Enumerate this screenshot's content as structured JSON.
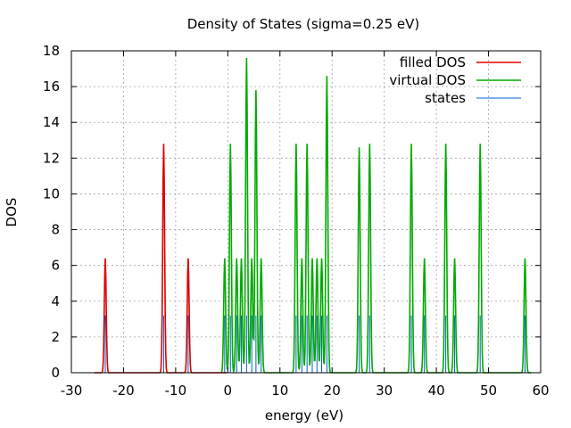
{
  "chart_data": {
    "type": "line",
    "title": "Density of States (sigma=0.25 eV)",
    "xlabel": "energy (eV)",
    "ylabel": "DOS",
    "xlim": [
      -30,
      60
    ],
    "ylim": [
      0,
      18
    ],
    "xticks": [
      -30,
      -20,
      -10,
      0,
      10,
      20,
      30,
      40,
      50,
      60
    ],
    "yticks": [
      0,
      2,
      4,
      6,
      8,
      10,
      12,
      14,
      16,
      18
    ],
    "grid": true,
    "legend_position": "top-right",
    "series": [
      {
        "name": "filled DOS",
        "color": "#dd0000",
        "peaks": [
          [
            -23.5,
            6.4
          ],
          [
            -12.3,
            12.8
          ],
          [
            -7.6,
            6.4
          ]
        ]
      },
      {
        "name": "virtual DOS",
        "color": "#00aa00",
        "peaks": [
          [
            -0.6,
            6.4
          ],
          [
            0.5,
            12.8
          ],
          [
            1.7,
            6.4
          ],
          [
            2.6,
            6.4
          ],
          [
            3.6,
            17.6
          ],
          [
            4.6,
            6.4
          ],
          [
            5.4,
            15.8
          ],
          [
            6.4,
            6.4
          ],
          [
            13.1,
            12.8
          ],
          [
            14.2,
            6.4
          ],
          [
            15.2,
            12.8
          ],
          [
            16.2,
            6.4
          ],
          [
            17.1,
            6.4
          ],
          [
            18.0,
            6.4
          ],
          [
            19.0,
            16.6
          ],
          [
            25.2,
            12.6
          ],
          [
            27.2,
            12.8
          ],
          [
            35.2,
            12.8
          ],
          [
            37.7,
            6.4
          ],
          [
            41.8,
            12.8
          ],
          [
            43.5,
            6.4
          ],
          [
            48.4,
            12.8
          ],
          [
            57.0,
            6.4
          ]
        ]
      },
      {
        "name": "states",
        "color": "#0060d0",
        "x": [
          -23.5,
          -12.3,
          -7.6,
          -0.6,
          0.5,
          1.7,
          2.6,
          3.6,
          4.6,
          5.4,
          6.4,
          13.1,
          14.2,
          15.2,
          16.2,
          17.1,
          18.0,
          19.0,
          25.2,
          27.2,
          35.2,
          37.7,
          41.8,
          43.5,
          48.4,
          57.0
        ],
        "heights": [
          3.2,
          3.2,
          3.2,
          3.2,
          3.2,
          3.2,
          3.2,
          3.2,
          3.2,
          3.2,
          3.2,
          3.2,
          3.2,
          3.2,
          3.2,
          3.2,
          3.2,
          3.2,
          3.2,
          3.2,
          3.2,
          3.2,
          3.2,
          3.2,
          3.2,
          3.2
        ]
      }
    ]
  }
}
